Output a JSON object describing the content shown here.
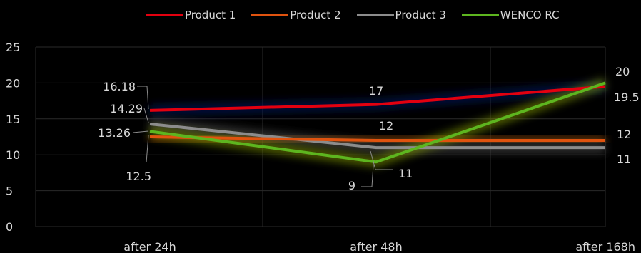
{
  "chart_data": {
    "type": "line",
    "categories": [
      "after 24h",
      "after 48h",
      "after 168h"
    ],
    "ylim": [
      0,
      25
    ],
    "yticks": [
      0,
      5,
      10,
      15,
      20,
      25
    ],
    "grid": true,
    "legend_position": "top",
    "series": [
      {
        "name": "Product 1",
        "color": "#e3000f",
        "values": [
          16.18,
          17,
          19.5
        ],
        "labels": [
          "16.18",
          "17",
          "19.5"
        ]
      },
      {
        "name": "Product 2",
        "color": "#e0530f",
        "values": [
          12.5,
          12,
          12
        ],
        "labels": [
          "12.5",
          "12",
          "12"
        ]
      },
      {
        "name": "Product 3",
        "color": "#8c8c8c",
        "values": [
          14.29,
          11,
          11
        ],
        "labels": [
          "14.29",
          "11",
          "11"
        ]
      },
      {
        "name": "WENCO RC",
        "color": "#5db51f",
        "values": [
          13.26,
          9,
          20
        ],
        "labels": [
          "13.26",
          "9",
          "20"
        ]
      }
    ]
  }
}
